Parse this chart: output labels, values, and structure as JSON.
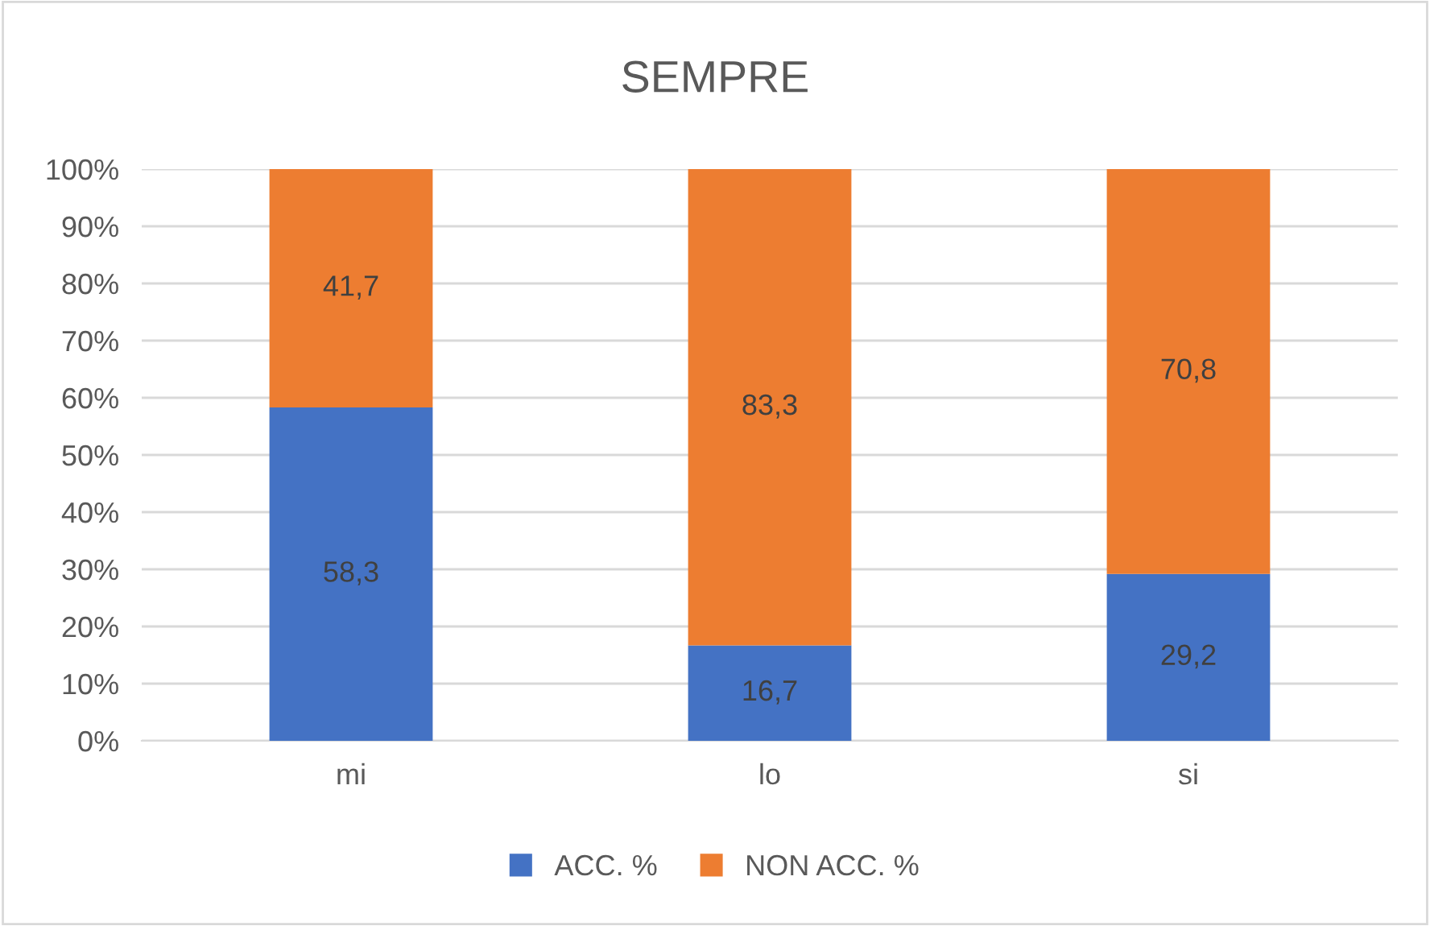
{
  "chart_data": {
    "type": "bar",
    "title": "SEMPRE",
    "stacked": true,
    "categories": [
      "mi",
      "lo",
      "si"
    ],
    "series": [
      {
        "name": "ACC. %",
        "color": "#4472c4",
        "values": [
          58.3,
          16.7,
          29.2
        ],
        "value_labels": [
          "58,3",
          "16,7",
          "29,2"
        ]
      },
      {
        "name": "NON ACC. %",
        "color": "#ed7d31",
        "values": [
          41.7,
          83.3,
          70.8
        ],
        "value_labels": [
          "41,7",
          "83,3",
          "70,8"
        ]
      }
    ],
    "ylim": [
      0,
      100
    ],
    "yticks": [
      {
        "value": 0,
        "label": "0%"
      },
      {
        "value": 10,
        "label": "10%"
      },
      {
        "value": 20,
        "label": "20%"
      },
      {
        "value": 30,
        "label": "30%"
      },
      {
        "value": 40,
        "label": "40%"
      },
      {
        "value": 50,
        "label": "50%"
      },
      {
        "value": 60,
        "label": "60%"
      },
      {
        "value": 70,
        "label": "70%"
      },
      {
        "value": 80,
        "label": "80%"
      },
      {
        "value": 90,
        "label": "90%"
      },
      {
        "value": 100,
        "label": "100%"
      }
    ],
    "grid": "y",
    "legend": "bottom"
  }
}
